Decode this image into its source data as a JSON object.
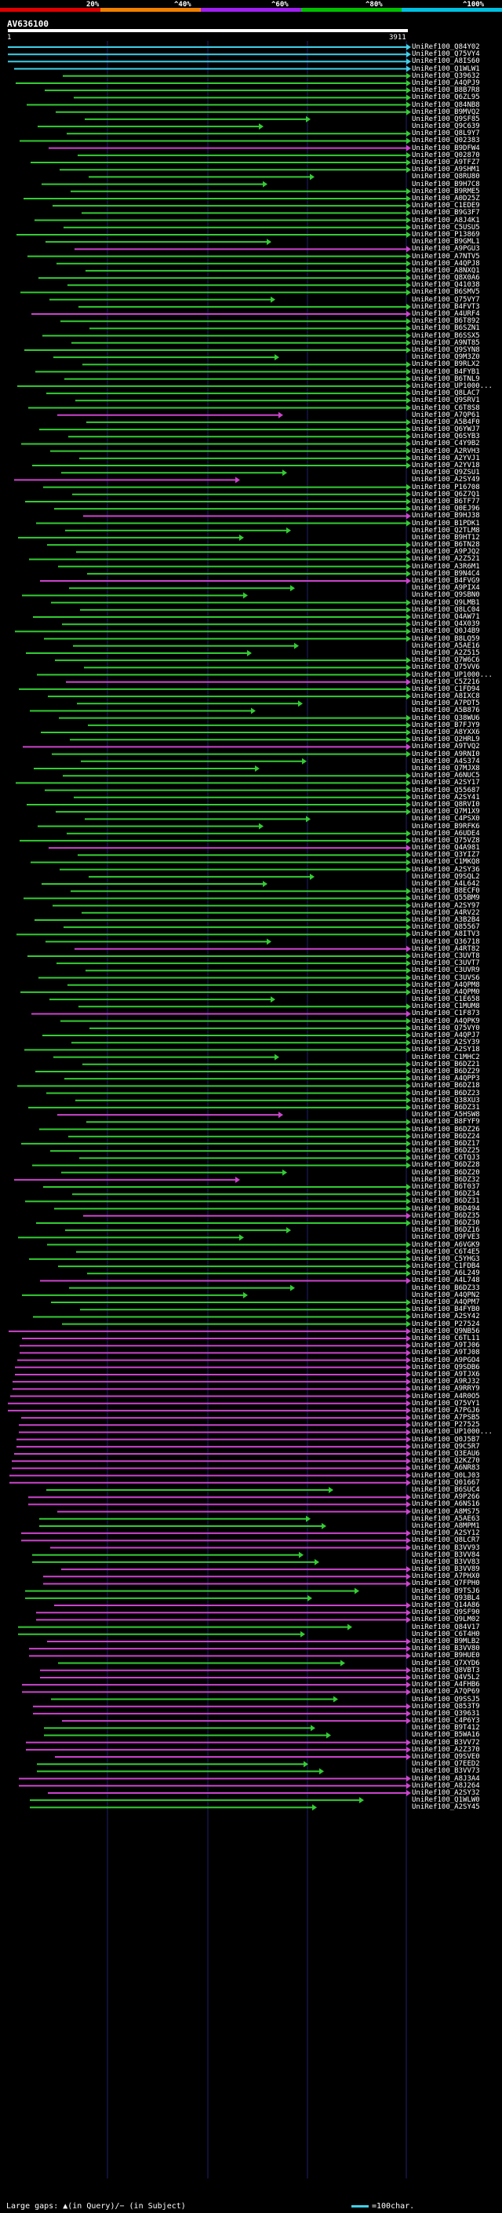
{
  "header": {
    "query_id": "AV636100",
    "range_start": "1",
    "range_end": "3911",
    "scale_labels": [
      "20%",
      "^40%",
      "^60%",
      "^80%",
      "^100%"
    ],
    "scale_colors": [
      "#e00000",
      "#f08000",
      "#a020f0",
      "#00c000",
      "#00c0e0"
    ]
  },
  "colors": {
    "cyan": "#3fd0e8",
    "green": "#33cc33",
    "magenta": "#cc44cc",
    "grid": "#202070",
    "axis": "#ffffff"
  },
  "hits": [
    "UniRef100_Q84Y02",
    "UniRef100_Q75VY4",
    "UniRef100_A8IS60",
    "UniRef100_Q1WLW1",
    "UniRef100_Q39632",
    "UniRef100_A4QPJ9",
    "UniRef100_B8B7R8",
    "UniRef100_Q6ZL95",
    "UniRef100_Q84NB8",
    "UniRef100_B9MVQ2",
    "UniRef100_Q9SF85",
    "UniRef100_Q9C639",
    "UniRef100_Q8L9Y7",
    "UniRef100_Q02383",
    "UniRef100_B9DFW4",
    "UniRef100_Q02870",
    "UniRef100_A9TFZ7",
    "UniRef100_A9SHM1",
    "UniRef100_Q8RU80",
    "UniRef100_B9H7C8",
    "UniRef100_B9RME5",
    "UniRef100_A0D25Z",
    "UniRef100_C1EDE9",
    "UniRef100_B9G3F7",
    "UniRef100_A8J4K1",
    "UniRef100_C5USU5",
    "UniRef100_P13869",
    "UniRef100_B9GML1",
    "UniRef100_A9PGU3",
    "UniRef100_A7NTV5",
    "UniRef100_A4QPJ8",
    "UniRef100_A8NXQ1",
    "UniRef100_Q8X0A6",
    "UniRef100_Q41038",
    "UniRef100_B6SMV5",
    "UniRef100_Q75VY7",
    "UniRef100_B4FVT3",
    "UniRef100_A4URF4",
    "UniRef100_B6T892",
    "UniRef100_B6SZN1",
    "UniRef100_B6SSX5",
    "UniRef100_A9NT85",
    "UniRef100_Q9SYN8",
    "UniRef100_Q9M3Z0",
    "UniRef100_B9RLX2",
    "UniRef100_B4FYB1",
    "UniRef100_B6TNL9",
    "UniRef100_UP1000...",
    "UniRef100_Q8LAC7",
    "UniRef100_Q9SRV1",
    "UniRef100_C6T8S8",
    "UniRef100_A7QP61",
    "UniRef100_A5B4F0",
    "UniRef100_Q6YWJ7",
    "UniRef100_Q6SYB3",
    "UniRef100_C4Y9B2",
    "UniRef100_A2RVH3",
    "UniRef100_A2YVJ1",
    "UniRef100_A2YV18",
    "UniRef100_Q9ZSU1",
    "UniRef100_A2SY49",
    "UniRef100_P16708",
    "UniRef100_Q6Z7Q1",
    "UniRef100_B6TF77",
    "UniRef100_Q0EJ96",
    "UniRef100_B9HJ38",
    "UniRef100_B1PDK1",
    "UniRef100_Q2TLM8",
    "UniRef100_B9HT12",
    "UniRef100_B6TN28",
    "UniRef100_A9PJQ2",
    "UniRef100_A2Z521",
    "UniRef100_A3R6M1",
    "UniRef100_B9N4C4",
    "UniRef100_B4FVG9",
    "UniRef100_A9PIX4",
    "UniRef100_Q9SBN0",
    "UniRef100_Q9LMB1",
    "UniRef100_Q8LC04",
    "UniRef100_Q4AW71",
    "UniRef100_Q4X039",
    "UniRef100_Q0J4B9",
    "UniRef100_B8LQ59",
    "UniRef100_A5AE16",
    "UniRef100_A2Z515",
    "UniRef100_Q7W6C6",
    "UniRef100_Q75VV6",
    "UniRef100_UP1000...",
    "UniRef100_C5Z216",
    "UniRef100_C1FD94",
    "UniRef100_A8IXC8",
    "UniRef100_A7PDT5",
    "UniRef100_A5B876",
    "UniRef100_Q38WU6",
    "UniRef100_B7FJY9",
    "UniRef100_A8YXX6",
    "UniRef100_Q2HRL9",
    "UniRef100_A9TVQ2",
    "UniRef100_A9RNI0",
    "UniRef100_A4S374",
    "UniRef100_Q7MJX8",
    "UniRef100_A6NUC5",
    "UniRef100_A2SY17",
    "UniRef100_Q55687",
    "UniRef100_A2SY41",
    "UniRef100_Q8RVI0",
    "UniRef100_Q7M1X9",
    "UniRef100_C4PSX0",
    "UniRef100_B9RFK6",
    "UniRef100_A6UDE4",
    "UniRef100_Q75VZ8",
    "UniRef100_Q4A981",
    "UniRef100_Q3YIZ7",
    "UniRef100_C1MKQ8",
    "UniRef100_A2SY36",
    "UniRef100_Q9SQL2",
    "UniRef100_A4L642",
    "UniRef100_B8ECF0",
    "UniRef100_Q55BM9",
    "UniRef100_A2SY97",
    "UniRef100_A4RV22",
    "UniRef100_A3B2B4",
    "UniRef100_Q85567",
    "UniRef100_A8ITV3",
    "UniRef100_Q36718",
    "UniRef100_A4RT82",
    "UniRef100_C3UVT8",
    "UniRef100_C3UVT7",
    "UniRef100_C3UVR9",
    "UniRef100_C3UVS6",
    "UniRef100_A4QPM8",
    "UniRef100_A4QPM0",
    "UniRef100_C1E658",
    "UniRef100_C1MUM8",
    "UniRef100_C1F873",
    "UniRef100_A4QPK9",
    "UniRef100_Q75VY0",
    "UniRef100_A4QPJ7",
    "UniRef100_A2SY39",
    "UniRef100_A2SY18",
    "UniRef100_C1MHC2",
    "UniRef100_B6DZ21",
    "UniRef100_B6DZ29",
    "UniRef100_A4QPP3",
    "UniRef100_B6DZ18",
    "UniRef100_B6DZ23",
    "UniRef100_Q38XU3",
    "UniRef100_B6DZ31",
    "UniRef100_A5HSW8",
    "UniRef100_B8FYF9",
    "UniRef100_B6DZ26",
    "UniRef100_B6DZ24",
    "UniRef100_B6DZ17",
    "UniRef100_B6DZ25",
    "UniRef100_C6TQJ3",
    "UniRef100_B6DZ28",
    "UniRef100_B6DZ20",
    "UniRef100_B6DZ32",
    "UniRef100_B6T037",
    "UniRef100_B6DZ34",
    "UniRef100_B6DZ31",
    "UniRef100_B6D494",
    "UniRef100_B6DZ35",
    "UniRef100_B6DZ30",
    "UniRef100_B6DZ16",
    "UniRef100_Q9FVE3",
    "UniRef100_A6VGK9",
    "UniRef100_C6T4E5",
    "UniRef100_C5YHG3",
    "UniRef100_C1FDB4",
    "UniRef100_A6L249",
    "UniRef100_A4L748",
    "UniRef100_B6DZ33",
    "UniRef100_A4QPN2",
    "UniRef100_A4QPM7",
    "UniRef100_B4FYB0",
    "UniRef100_A2SY42",
    "UniRef100_P27524",
    "UniRef100_Q9NB56",
    "UniRef100_C6TL11",
    "UniRef100_A9TJ06",
    "UniRef100_A9TJ08",
    "UniRef100_A9PGO4",
    "UniRef100_Q9SDB6",
    "UniRef100_A9TJX6",
    "UniRef100_A9RJ32",
    "UniRef100_A9RRY9",
    "UniRef100_A4R0O5",
    "UniRef100_Q75VY1",
    "UniRef100_A7PGJ6",
    "UniRef100_A7PSB5",
    "UniRef100_P27525",
    "UniRef100_UP1000...",
    "UniRef100_Q0J5B7",
    "UniRef100_Q9C5R7",
    "UniRef100_Q3EAU6",
    "UniRef100_Q2KZ70",
    "UniRef100_A6NR83",
    "UniRef100_Q0LJ03",
    "UniRef100_Q01667",
    "UniRef100_B6SUC4",
    "UniRef100_A9P266",
    "UniRef100_A6NS16",
    "UniRef100_A8MS75",
    "UniRef100_A5AE63",
    "UniRef100_A8MPM1",
    "UniRef100_A2SY12",
    "UniRef100_Q8LCR7",
    "UniRef100_B3VV93",
    "UniRef100_B3VV84",
    "UniRef100_B3VV83",
    "UniRef100_B3VV89",
    "UniRef100_A7PHX0",
    "UniRef100_Q7FPH0",
    "UniRef100_B9TSJ6",
    "UniRef100_Q93BL4",
    "UniRef100_Q14A86",
    "UniRef100_Q9SF90",
    "UniRef100_Q9LM02",
    "UniRef100_Q84V17",
    "UniRef100_C6T4H0",
    "UniRef100_B9MLB2",
    "UniRef100_B3VV80",
    "UniRef100_B9HUE0",
    "UniRef100_Q7XYD6",
    "UniRef100_Q8VBT3",
    "UniRef100_Q4V5L2",
    "UniRef100_A4FHB6",
    "UniRef100_A7QP69",
    "UniRef100_Q9SSJ5",
    "UniRef100_Q853T9",
    "UniRef100_Q39631",
    "UniRef100_C4P6Y3",
    "UniRef100_B9T412",
    "UniRef100_B5WA16",
    "UniRef100_B3VV72",
    "UniRef100_A2Z370",
    "UniRef100_Q9SVE0",
    "UniRef100_Q7EED2",
    "UniRef100_B3VV73",
    "UniRef100_A8J3A4",
    "UniRef100_A8J264",
    "UniRef100_A2SY32",
    "UniRef100_Q1WLW0",
    "UniRef100_A2SY45"
  ],
  "legend": {
    "left": "Large gaps: ▲(in Query)/− (in Subject)",
    "right": "=100char."
  }
}
